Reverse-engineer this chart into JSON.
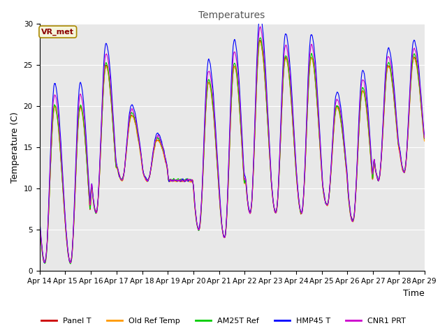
{
  "title": "Temperatures",
  "xlabel": "Time",
  "ylabel": "Temperature (C)",
  "ylim": [
    0,
    30
  ],
  "plot_bg_color": "#e8e8e8",
  "annotation_text": "VR_met",
  "annotation_color": "#8B0000",
  "annotation_bg": "#f5f5dc",
  "legend_labels": [
    "Panel T",
    "Old Ref Temp",
    "AM25T Ref",
    "HMP45 T",
    "CNR1 PRT"
  ],
  "line_colors": [
    "#cc0000",
    "#ff9900",
    "#00cc00",
    "#0000ff",
    "#cc00cc"
  ],
  "x_tick_labels": [
    "Apr 14",
    "Apr 15",
    "Apr 16",
    "Apr 17",
    "Apr 18",
    "Apr 19",
    "Apr 20",
    "Apr 21",
    "Apr 22",
    "Apr 23",
    "Apr 24",
    "Apr 25",
    "Apr 26",
    "Apr 27",
    "Apr 28",
    "Apr 29"
  ],
  "n_days": 15,
  "pts_per_day": 96,
  "figsize": [
    6.4,
    4.8
  ],
  "dpi": 100,
  "daily_max": [
    20,
    20,
    25,
    19,
    16,
    11,
    23,
    25,
    28,
    26,
    26,
    20,
    22,
    25,
    26
  ],
  "daily_min": [
    1,
    1,
    7,
    11,
    11,
    11,
    5,
    4,
    7,
    7,
    7,
    8,
    6,
    11,
    12
  ],
  "hmp45_extra_scale": 1.15,
  "cnr1_scale": 1.08,
  "noise_scale": 0.15,
  "lw": 0.8
}
